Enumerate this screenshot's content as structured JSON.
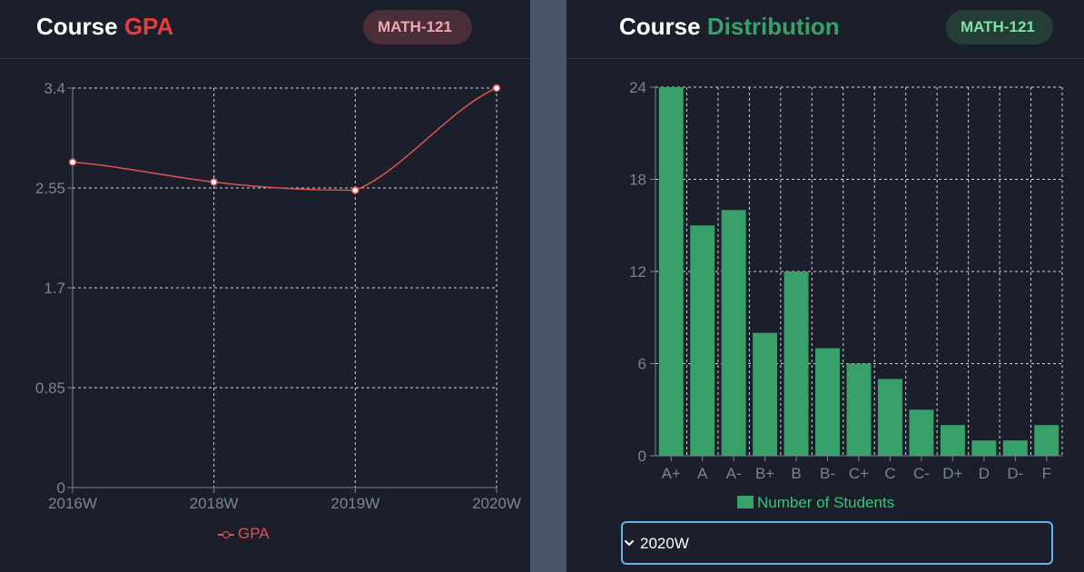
{
  "gpa_panel": {
    "title_white": "Course",
    "title_accent": "GPA",
    "accent_color": "#e53e3e",
    "badge": "MATH-121",
    "legend": "GPA"
  },
  "dist_panel": {
    "title_white": "Course",
    "title_accent": "Distribution",
    "accent_color": "#38a169",
    "badge": "MATH-121",
    "legend": "Number of Students",
    "term_select": {
      "value": "2020W",
      "icon": "chevron-down-icon"
    }
  },
  "chart_data": [
    {
      "type": "line",
      "x": [
        "2016W",
        "2018W",
        "2019W",
        "2020W"
      ],
      "series": [
        {
          "name": "GPA",
          "values": [
            2.77,
            2.6,
            2.53,
            3.4
          ],
          "color": "#e05252"
        }
      ],
      "yticks": [
        "0",
        "0.85",
        "1.7",
        "2.55",
        "3.4"
      ],
      "ylim": [
        0,
        3.4
      ],
      "grid": true,
      "legend": "bottom",
      "curve": "smooth"
    },
    {
      "type": "bar",
      "categories": [
        "A+",
        "A",
        "A-",
        "B+",
        "B",
        "B-",
        "C+",
        "C",
        "C-",
        "D+",
        "D",
        "D-",
        "F"
      ],
      "series": [
        {
          "name": "Number of Students",
          "values": [
            24,
            15,
            16,
            8,
            12,
            7,
            6,
            5,
            3,
            2,
            1,
            1,
            2
          ],
          "color": "#38a169"
        }
      ],
      "yticks": [
        "0",
        "6",
        "12",
        "18",
        "24"
      ],
      "ylim": [
        0,
        24
      ],
      "grid": true,
      "legend": "bottom"
    }
  ]
}
